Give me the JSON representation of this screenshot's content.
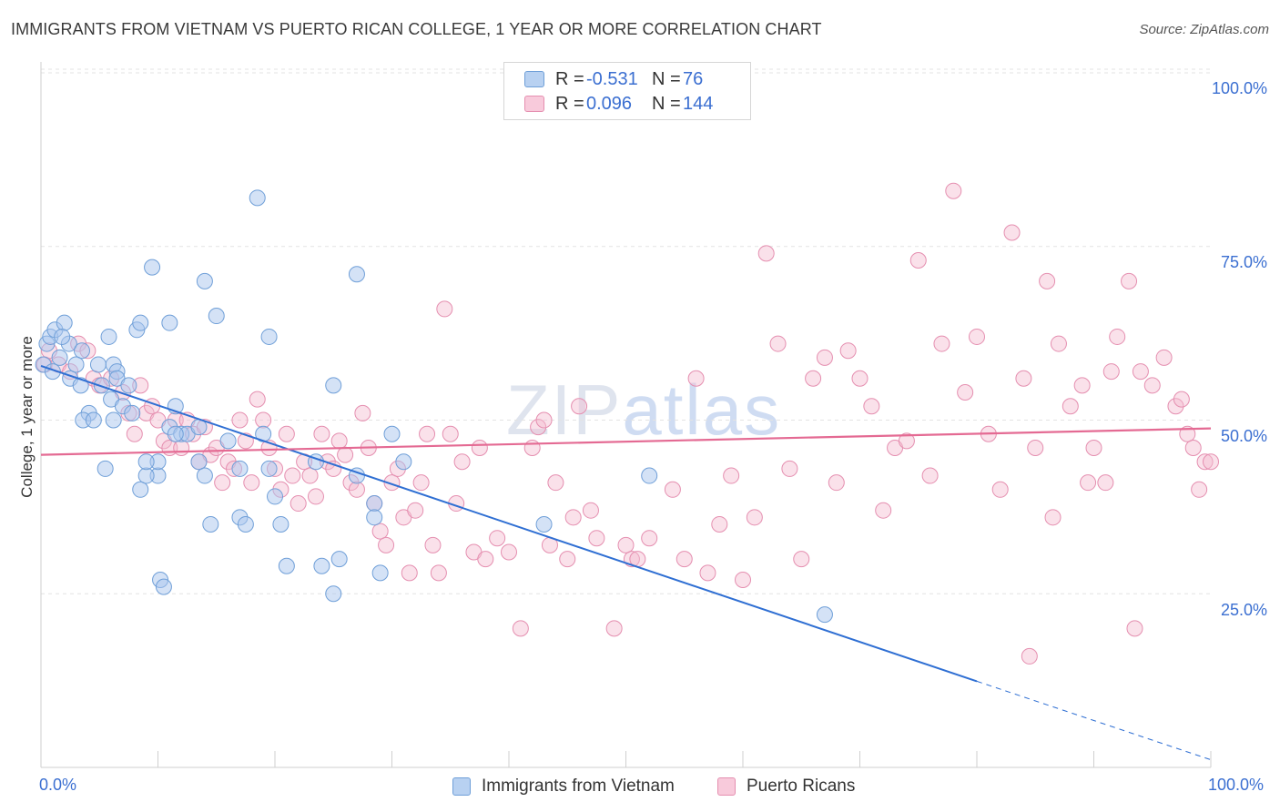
{
  "header": {
    "title": "IMMIGRANTS FROM VIETNAM VS PUERTO RICAN COLLEGE, 1 YEAR OR MORE CORRELATION CHART",
    "source": "Source: ZipAtlas.com"
  },
  "watermark": {
    "zip": "ZIP",
    "atlas": "atlas"
  },
  "legend": {
    "rows": [
      {
        "r_label": "R =",
        "r_value": "-0.531",
        "n_label": "N =",
        "n_value": "76"
      },
      {
        "r_label": "R =",
        "r_value": "0.096",
        "n_label": "N =",
        "n_value": "144"
      }
    ]
  },
  "colors": {
    "blue_fill": "#a9c6ee",
    "blue_stroke": "#6f9fd8",
    "blue_line": "#2f6fd3",
    "pink_fill": "#f5bcd0",
    "pink_stroke": "#e58fb0",
    "pink_line": "#e46a93",
    "tick_text": "#3b6fd1",
    "grid": "#e3e3e3"
  },
  "chart_data": {
    "type": "scatter",
    "title": "IMMIGRANTS FROM VIETNAM VS PUERTO RICAN COLLEGE, 1 YEAR OR MORE CORRELATION CHART",
    "xlabel": "",
    "ylabel": "College, 1 year or more",
    "xlim": [
      0,
      100
    ],
    "ylim": [
      0,
      100
    ],
    "x_tick_labels": [
      "0.0%",
      "100.0%"
    ],
    "y_tick_labels": [
      {
        "value": 100,
        "label": "100.0%"
      },
      {
        "value": 75,
        "label": "75.0%"
      },
      {
        "value": 50,
        "label": "50.0%"
      },
      {
        "value": 25,
        "label": "25.0%"
      }
    ],
    "grid": true,
    "legend_position": "top-center",
    "series": [
      {
        "name": "Immigrants from Vietnam",
        "color": "#a9c6ee",
        "trend": {
          "x": [
            0,
            80
          ],
          "y": [
            57.8,
            12.4
          ],
          "dashed_to": [
            100,
            1.1
          ]
        },
        "points": [
          [
            0.2,
            58
          ],
          [
            0.5,
            61
          ],
          [
            0.8,
            62
          ],
          [
            1.2,
            63
          ],
          [
            1.6,
            59
          ],
          [
            2.0,
            64
          ],
          [
            1.0,
            57
          ],
          [
            2.4,
            61
          ],
          [
            1.8,
            62
          ],
          [
            3.5,
            60
          ],
          [
            2.5,
            56
          ],
          [
            3.0,
            58
          ],
          [
            3.4,
            55
          ],
          [
            4.1,
            51
          ],
          [
            3.6,
            50
          ],
          [
            4.9,
            58
          ],
          [
            5.2,
            55
          ],
          [
            5.8,
            62
          ],
          [
            6.2,
            58
          ],
          [
            6.5,
            57
          ],
          [
            6.5,
            56
          ],
          [
            6.0,
            53
          ],
          [
            7.0,
            52
          ],
          [
            7.5,
            55
          ],
          [
            6.2,
            50
          ],
          [
            5.5,
            43
          ],
          [
            7.8,
            51
          ],
          [
            8.2,
            63
          ],
          [
            8.5,
            64
          ],
          [
            9.5,
            72
          ],
          [
            10.0,
            42
          ],
          [
            8.5,
            40
          ],
          [
            9.0,
            42
          ],
          [
            10.0,
            44
          ],
          [
            11.0,
            49
          ],
          [
            12.0,
            48
          ],
          [
            11.5,
            52
          ],
          [
            11.0,
            64
          ],
          [
            12.5,
            48
          ],
          [
            13.5,
            49
          ],
          [
            14.0,
            70
          ],
          [
            13.5,
            44
          ],
          [
            14.0,
            42
          ],
          [
            14.5,
            35
          ],
          [
            15.0,
            65
          ],
          [
            10.2,
            27
          ],
          [
            10.5,
            26
          ],
          [
            11.5,
            48
          ],
          [
            16.0,
            47
          ],
          [
            17.0,
            36
          ],
          [
            17.5,
            35
          ],
          [
            17.0,
            43
          ],
          [
            19.0,
            48
          ],
          [
            18.5,
            82
          ],
          [
            19.5,
            43
          ],
          [
            20.0,
            39
          ],
          [
            19.5,
            62
          ],
          [
            20.5,
            35
          ],
          [
            21.0,
            29
          ],
          [
            23.5,
            44
          ],
          [
            24.0,
            29
          ],
          [
            25.0,
            25
          ],
          [
            25.5,
            30
          ],
          [
            25.0,
            55
          ],
          [
            27.0,
            42
          ],
          [
            30.0,
            48
          ],
          [
            28.5,
            38
          ],
          [
            28.5,
            36
          ],
          [
            29.0,
            28
          ],
          [
            31.0,
            44
          ],
          [
            27.0,
            71
          ],
          [
            43.0,
            35
          ],
          [
            52.0,
            42
          ],
          [
            67.0,
            22
          ],
          [
            4.5,
            50
          ],
          [
            9.0,
            44
          ]
        ]
      },
      {
        "name": "Puerto Ricans",
        "color": "#f5bcd0",
        "trend": {
          "x": [
            0,
            100
          ],
          "y": [
            45.0,
            48.8
          ]
        },
        "points": [
          [
            0.3,
            58
          ],
          [
            0.7,
            60
          ],
          [
            1.5,
            58
          ],
          [
            2.5,
            57
          ],
          [
            3.2,
            61
          ],
          [
            4.0,
            60
          ],
          [
            4.5,
            56
          ],
          [
            5.0,
            55
          ],
          [
            6.0,
            56
          ],
          [
            7.0,
            54
          ],
          [
            7.5,
            51
          ],
          [
            8.0,
            48
          ],
          [
            8.5,
            55
          ],
          [
            9.0,
            51
          ],
          [
            9.5,
            52
          ],
          [
            10.0,
            50
          ],
          [
            10.5,
            47
          ],
          [
            11.0,
            46
          ],
          [
            11.5,
            50
          ],
          [
            12.0,
            46
          ],
          [
            12.5,
            50
          ],
          [
            13.0,
            48
          ],
          [
            13.5,
            44
          ],
          [
            14.0,
            49
          ],
          [
            14.5,
            45
          ],
          [
            15.0,
            46
          ],
          [
            15.5,
            41
          ],
          [
            16.0,
            44
          ],
          [
            16.5,
            43
          ],
          [
            17.0,
            50
          ],
          [
            17.5,
            47
          ],
          [
            18.0,
            41
          ],
          [
            18.5,
            53
          ],
          [
            19.0,
            50
          ],
          [
            19.5,
            46
          ],
          [
            20.0,
            43
          ],
          [
            20.5,
            40
          ],
          [
            21.0,
            48
          ],
          [
            21.5,
            42
          ],
          [
            22.0,
            38
          ],
          [
            22.5,
            44
          ],
          [
            23.0,
            42
          ],
          [
            23.5,
            39
          ],
          [
            24.0,
            48
          ],
          [
            24.5,
            44
          ],
          [
            25.0,
            43
          ],
          [
            25.5,
            47
          ],
          [
            26.0,
            45
          ],
          [
            26.5,
            41
          ],
          [
            27.0,
            40
          ],
          [
            27.5,
            51
          ],
          [
            28.0,
            46
          ],
          [
            28.5,
            38
          ],
          [
            29.0,
            34
          ],
          [
            29.5,
            32
          ],
          [
            30.0,
            41
          ],
          [
            30.5,
            43
          ],
          [
            31.0,
            36
          ],
          [
            31.5,
            28
          ],
          [
            32.0,
            37
          ],
          [
            32.5,
            41
          ],
          [
            33.0,
            48
          ],
          [
            33.5,
            32
          ],
          [
            34.0,
            28
          ],
          [
            34.5,
            66
          ],
          [
            35.0,
            48
          ],
          [
            35.5,
            38
          ],
          [
            36.0,
            44
          ],
          [
            37.0,
            31
          ],
          [
            37.5,
            46
          ],
          [
            38.0,
            30
          ],
          [
            39.0,
            33
          ],
          [
            40.0,
            31
          ],
          [
            41.0,
            20
          ],
          [
            42.0,
            46
          ],
          [
            42.5,
            49
          ],
          [
            43.0,
            50
          ],
          [
            43.5,
            32
          ],
          [
            44.0,
            41
          ],
          [
            45.0,
            30
          ],
          [
            45.5,
            36
          ],
          [
            46.0,
            52
          ],
          [
            47.0,
            37
          ],
          [
            47.5,
            33
          ],
          [
            49.0,
            20
          ],
          [
            50.0,
            32
          ],
          [
            50.5,
            30
          ],
          [
            51.0,
            30
          ],
          [
            52.0,
            33
          ],
          [
            54.0,
            40
          ],
          [
            55.0,
            30
          ],
          [
            56.0,
            56
          ],
          [
            57.0,
            28
          ],
          [
            58.0,
            35
          ],
          [
            59.0,
            42
          ],
          [
            60.0,
            27
          ],
          [
            61.0,
            36
          ],
          [
            62.0,
            74
          ],
          [
            63.0,
            61
          ],
          [
            64.0,
            43
          ],
          [
            65.0,
            30
          ],
          [
            66.0,
            56
          ],
          [
            67.0,
            59
          ],
          [
            68.0,
            41
          ],
          [
            69.0,
            60
          ],
          [
            70.0,
            56
          ],
          [
            71.0,
            52
          ],
          [
            72.0,
            37
          ],
          [
            73.0,
            46
          ],
          [
            74.0,
            47
          ],
          [
            75.0,
            73
          ],
          [
            76.0,
            42
          ],
          [
            77.0,
            61
          ],
          [
            78.0,
            83
          ],
          [
            79.0,
            54
          ],
          [
            80.0,
            62
          ],
          [
            81.0,
            48
          ],
          [
            82.0,
            40
          ],
          [
            83.0,
            77
          ],
          [
            84.0,
            56
          ],
          [
            85.0,
            46
          ],
          [
            86.0,
            70
          ],
          [
            87.0,
            61
          ],
          [
            88.0,
            52
          ],
          [
            89.0,
            55
          ],
          [
            90.0,
            46
          ],
          [
            91.0,
            41
          ],
          [
            92.0,
            62
          ],
          [
            93.0,
            70
          ],
          [
            94.0,
            57
          ],
          [
            95.0,
            55
          ],
          [
            96.0,
            59
          ],
          [
            97.0,
            52
          ],
          [
            97.5,
            53
          ],
          [
            98.0,
            48
          ],
          [
            98.5,
            46
          ],
          [
            99.0,
            40
          ],
          [
            99.5,
            44
          ],
          [
            100.0,
            44
          ],
          [
            86.5,
            36
          ],
          [
            89.5,
            41
          ],
          [
            93.5,
            20
          ],
          [
            84.5,
            16
          ],
          [
            91.5,
            57
          ]
        ]
      }
    ]
  },
  "bottom_legend": {
    "items": [
      {
        "label": "Immigrants from Vietnam"
      },
      {
        "label": "Puerto Ricans"
      }
    ]
  }
}
